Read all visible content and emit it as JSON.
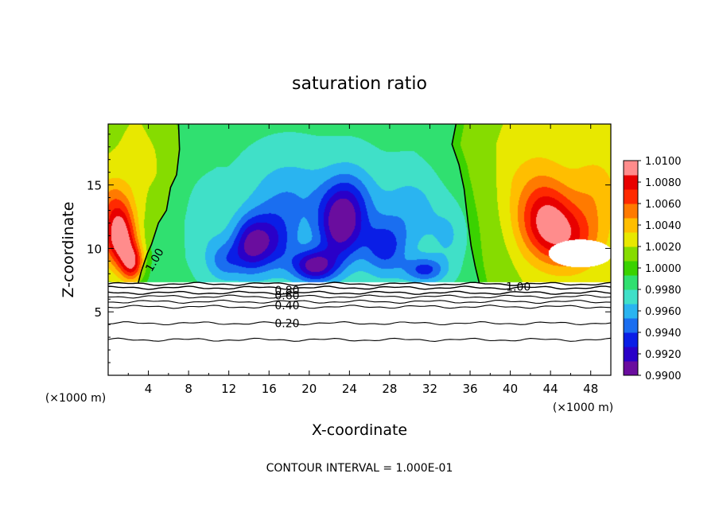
{
  "chart_data": {
    "type": "heatmap",
    "title": "saturation ratio",
    "xlabel": "X-coordinate",
    "ylabel": "Z-coordinate",
    "x_unit": "(×1000 m)",
    "y_unit": "(×1000 m)",
    "xlim": [
      0,
      50
    ],
    "ylim": [
      0,
      19.8
    ],
    "x_ticks": [
      "4",
      "8",
      "12",
      "16",
      "20",
      "24",
      "28",
      "32",
      "36",
      "40",
      "44",
      "48"
    ],
    "y_ticks": [
      "5",
      "10",
      "15"
    ],
    "footer": "CONTOUR INTERVAL = 1.000E-01",
    "colorbar": {
      "min": 0.99,
      "max": 1.01,
      "tick_labels": [
        "0.9900",
        "0.9920",
        "0.9940",
        "0.9960",
        "0.9980",
        "1.0000",
        "1.0020",
        "1.0040",
        "1.0060",
        "1.0080",
        "1.0100"
      ],
      "colors": [
        "#6a0d9e",
        "#2a00c8",
        "#0a1ee6",
        "#1a6ef0",
        "#2ab4f0",
        "#40e0c8",
        "#30e070",
        "#3ad200",
        "#86dc00",
        "#e8e800",
        "#ffbe00",
        "#ff7a00",
        "#ff2a00",
        "#e80000",
        "#ff8c8c"
      ]
    },
    "contour_labels": [
      "1.00",
      "1.00",
      "0.80",
      "0.60",
      "0.40",
      "0.20"
    ],
    "fill_top": 7.3,
    "contours_below": [
      7.2,
      6.9,
      6.5,
      6.2,
      5.8,
      5.4,
      4.1,
      2.8
    ],
    "contour_1_left": [
      [
        7.0,
        19.8
      ],
      [
        7.1,
        17.8
      ],
      [
        6.8,
        15.8
      ],
      [
        6.2,
        14.8
      ],
      [
        5.8,
        13.0
      ],
      [
        5.0,
        12.0
      ],
      [
        4.3,
        10.3
      ],
      [
        3.9,
        9.6
      ],
      [
        3.3,
        8.2
      ],
      [
        3.0,
        7.3
      ]
    ],
    "contour_1_right": [
      [
        34.6,
        19.8
      ],
      [
        34.2,
        18.2
      ],
      [
        34.9,
        16.6
      ],
      [
        35.4,
        14.7
      ],
      [
        35.8,
        12.0
      ],
      [
        36.1,
        10.2
      ],
      [
        36.5,
        8.6
      ],
      [
        36.9,
        7.3
      ]
    ],
    "features": [
      {
        "x": 1.2,
        "z": 10.8,
        "sx": 1.6,
        "sz": 2.2,
        "v": 1.0092
      },
      {
        "x": 2.4,
        "z": 8.8,
        "sx": 1.2,
        "sz": 1.5,
        "v": 1.0075
      },
      {
        "x": 0.5,
        "z": 13.5,
        "sx": 1.8,
        "sz": 2.2,
        "v": 1.0035
      },
      {
        "x": 4.5,
        "z": 16.0,
        "sx": 3.0,
        "sz": 4.0,
        "v": 1.001
      },
      {
        "x": 43.5,
        "z": 12.2,
        "sx": 2.6,
        "sz": 2.8,
        "v": 1.0062
      },
      {
        "x": 46.0,
        "z": 10.8,
        "sx": 3.0,
        "sz": 2.5,
        "v": 1.005
      },
      {
        "x": 42.5,
        "z": 15.0,
        "sx": 3.5,
        "sz": 3.5,
        "v": 1.0018
      },
      {
        "x": 48.5,
        "z": 14.5,
        "sx": 2.5,
        "sz": 3.0,
        "v": 1.0022
      },
      {
        "x": 16.0,
        "z": 10.5,
        "sx": 2.6,
        "sz": 2.4,
        "v": 0.9945
      },
      {
        "x": 14.0,
        "z": 10.2,
        "sx": 1.8,
        "sz": 2.2,
        "v": 0.995
      },
      {
        "x": 20.5,
        "z": 8.6,
        "sx": 2.2,
        "sz": 1.3,
        "v": 0.992
      },
      {
        "x": 23.0,
        "z": 11.5,
        "sx": 2.2,
        "sz": 2.8,
        "v": 0.9935
      },
      {
        "x": 24.0,
        "z": 13.5,
        "sx": 2.6,
        "sz": 3.0,
        "v": 0.9955
      },
      {
        "x": 27.5,
        "z": 10.0,
        "sx": 2.2,
        "sz": 2.2,
        "v": 0.995
      },
      {
        "x": 31.5,
        "z": 8.3,
        "sx": 2.0,
        "sz": 1.0,
        "v": 0.995
      },
      {
        "x": 11.5,
        "z": 9.0,
        "sx": 1.8,
        "sz": 1.6,
        "v": 0.9965
      },
      {
        "x": 18.0,
        "z": 14.0,
        "sx": 4.0,
        "sz": 3.2,
        "v": 0.997
      },
      {
        "x": 30.0,
        "z": 13.0,
        "sx": 3.0,
        "sz": 3.0,
        "v": 0.9975
      },
      {
        "x": 9.5,
        "z": 12.5,
        "sx": 2.0,
        "sz": 3.0,
        "v": 0.9985
      },
      {
        "x": 34.0,
        "z": 11.0,
        "sx": 1.8,
        "sz": 2.5,
        "v": 0.998
      }
    ]
  }
}
